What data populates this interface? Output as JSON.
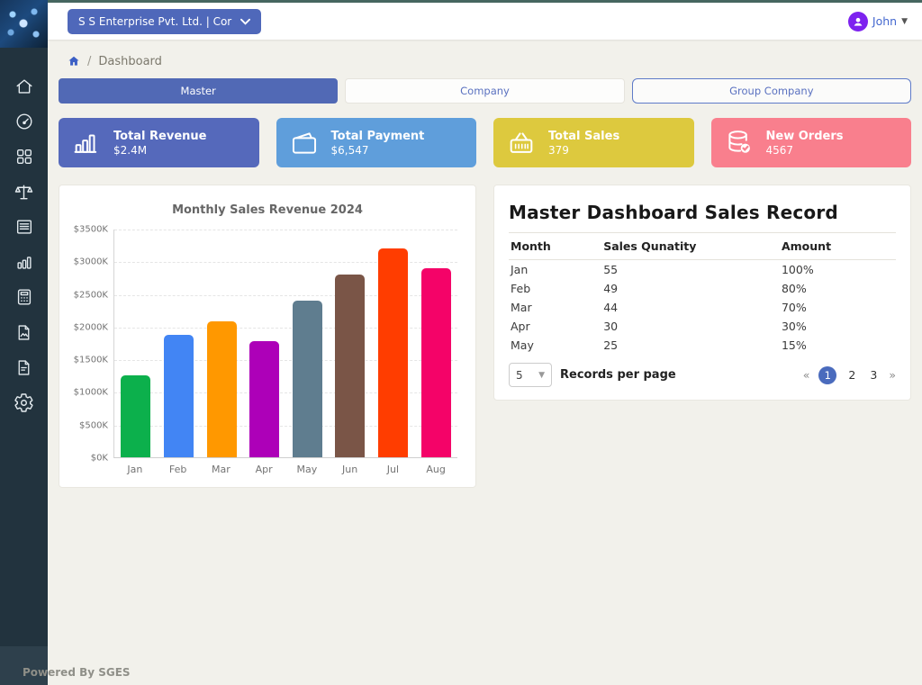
{
  "header": {
    "company_select": "S S Enterprise Pvt. Ltd. | Cor",
    "user_name": "John"
  },
  "breadcrumb": {
    "separator": "/",
    "current": "Dashboard"
  },
  "tabs": [
    {
      "label": "Master",
      "state": "active"
    },
    {
      "label": "Company",
      "state": "default"
    },
    {
      "label": "Group Company",
      "state": "outlined"
    }
  ],
  "cards": [
    {
      "title": "Total Revenue",
      "value": "$2.4M",
      "color": "#5569bb",
      "icon": "bar-chart-icon"
    },
    {
      "title": "Total Payment",
      "value": "$6,547",
      "color": "#5f9edb",
      "icon": "wallet-icon"
    },
    {
      "title": "Total Sales",
      "value": "379",
      "color": "#ddc93e",
      "icon": "basket-icon"
    },
    {
      "title": "New Orders",
      "value": "4567",
      "color": "#f97f8d",
      "icon": "database-check-icon"
    }
  ],
  "chart_data": {
    "type": "bar",
    "title": "Monthly Sales Revenue 2024",
    "categories": [
      "Jan",
      "Feb",
      "Mar",
      "Apr",
      "May",
      "Jun",
      "Jul",
      "Aug"
    ],
    "values": [
      1250,
      1880,
      2080,
      1780,
      2400,
      2800,
      3200,
      2900
    ],
    "bar_colors": [
      "#0cb04c",
      "#4285f4",
      "#ff9800",
      "#ad00b8",
      "#5f7d8f",
      "#7a5547",
      "#ff3d00",
      "#f40368"
    ],
    "y_ticks": [
      "$3500K",
      "$3000K",
      "$2500K",
      "$2000K",
      "$1500K",
      "$1000K",
      "$500K",
      "$0K"
    ],
    "ylim": [
      0,
      3500
    ],
    "xlabel": "",
    "ylabel": "",
    "grid": true,
    "legend": false
  },
  "sales_table": {
    "title": "Master Dashboard Sales Record",
    "columns": [
      "Month",
      "Sales Qunatity",
      "Amount"
    ],
    "rows": [
      [
        "Jan",
        "55",
        "100%"
      ],
      [
        "Feb",
        "49",
        "80%"
      ],
      [
        "Mar",
        "44",
        "70%"
      ],
      [
        "Apr",
        "30",
        "30%"
      ],
      [
        "May",
        "25",
        "15%"
      ]
    ],
    "records_per_page_value": "5",
    "records_per_page_label": "Records per page",
    "pagination": {
      "prev": "«",
      "pages": [
        "1",
        "2",
        "3"
      ],
      "active": "1",
      "next": "»"
    }
  },
  "sidebar": {
    "icons": [
      "home",
      "gauge",
      "apps-grid",
      "balance-scale",
      "report-list",
      "bar-chart",
      "calculator",
      "file-image",
      "file-text",
      "gear"
    ]
  },
  "footer": {
    "text": "Powered By SGES"
  },
  "colors": {
    "sidebar": "#22333e",
    "topline": "#466660",
    "accent_indigo": "#5169b5",
    "content_bg": "#f2f1eb",
    "pagination_active": "#4a6bbd",
    "avatar_purple": "#7d22ef"
  }
}
